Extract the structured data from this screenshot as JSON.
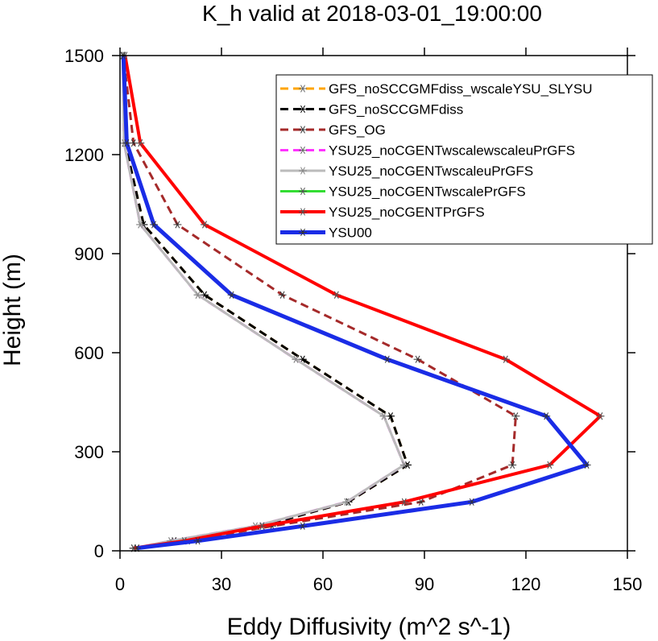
{
  "chart_data": {
    "type": "line",
    "title": "K_h valid at 2018-03-01_19:00:00",
    "xlabel": "Eddy Diffusivity (m^2 s^-1)",
    "ylabel": "Height (m)",
    "xlim": [
      0,
      150
    ],
    "ylim": [
      0,
      1500
    ],
    "xticks": [
      "0",
      "30",
      "60",
      "90",
      "120",
      "150"
    ],
    "yticks": [
      "0",
      "300",
      "600",
      "900",
      "1200",
      "1500"
    ],
    "grid": false,
    "legend_position": "top-right",
    "heights": [
      8,
      30,
      75,
      148,
      260,
      408,
      580,
      775,
      988,
      1235,
      1500
    ],
    "series": [
      {
        "name": "GFS_noSCCGMFdiss_wscaleYSU_SLYSU",
        "color": "#ffa500",
        "dash": "dashed",
        "width": 3,
        "marker": "#666666",
        "values": [
          4,
          16,
          42,
          67.5,
          85,
          80,
          54,
          25,
          7,
          1.5,
          0.8
        ]
      },
      {
        "name": "GFS_noSCCGMFdiss",
        "color": "#000000",
        "dash": "dashed",
        "width": 3,
        "marker": "#000000",
        "values": [
          4,
          16,
          42,
          67.5,
          85,
          80,
          54,
          25,
          7,
          1.5,
          0.8
        ]
      },
      {
        "name": "GFS_OG",
        "color": "#a52a2a",
        "dash": "dashed",
        "width": 3,
        "marker": "#333333",
        "values": [
          5,
          20,
          45,
          89,
          116,
          117,
          88,
          48,
          17,
          4,
          1
        ]
      },
      {
        "name": "YSU25_noCGENTwscalewscaleuPrGFS",
        "color": "#ff33ff",
        "dash": "dashed",
        "width": 3,
        "marker": "#666666",
        "values": [
          4,
          15,
          40,
          67,
          84,
          78,
          52,
          23,
          6,
          1.2,
          0.8
        ]
      },
      {
        "name": "YSU25_noCGENTwscaleuPrGFS",
        "color": "#bbbbbb",
        "dash": "solid",
        "width": 3,
        "marker": "#888888",
        "values": [
          4,
          15,
          40,
          67,
          84,
          78,
          52,
          23,
          6,
          1.2,
          0.8
        ]
      },
      {
        "name": "YSU25_noCGENTwscalePrGFS",
        "color": "#33dd33",
        "dash": "solid",
        "width": 3,
        "marker": "#555555",
        "values": [
          4,
          19,
          42,
          84,
          127,
          142,
          114,
          64,
          25,
          6,
          1.5
        ]
      },
      {
        "name": "YSU25_noCGENTPrGFS",
        "color": "#ff0000",
        "dash": "solid",
        "width": 4,
        "marker": "#555555",
        "values": [
          4,
          19,
          42,
          84,
          127,
          142,
          114,
          64,
          25,
          6,
          1.5
        ]
      },
      {
        "name": "YSU00",
        "color": "#1a2ce6",
        "dash": "solid",
        "width": 5,
        "marker": "#333333",
        "values": [
          5,
          23,
          54,
          104,
          138,
          126,
          79,
          33,
          10,
          2,
          1
        ]
      }
    ]
  }
}
